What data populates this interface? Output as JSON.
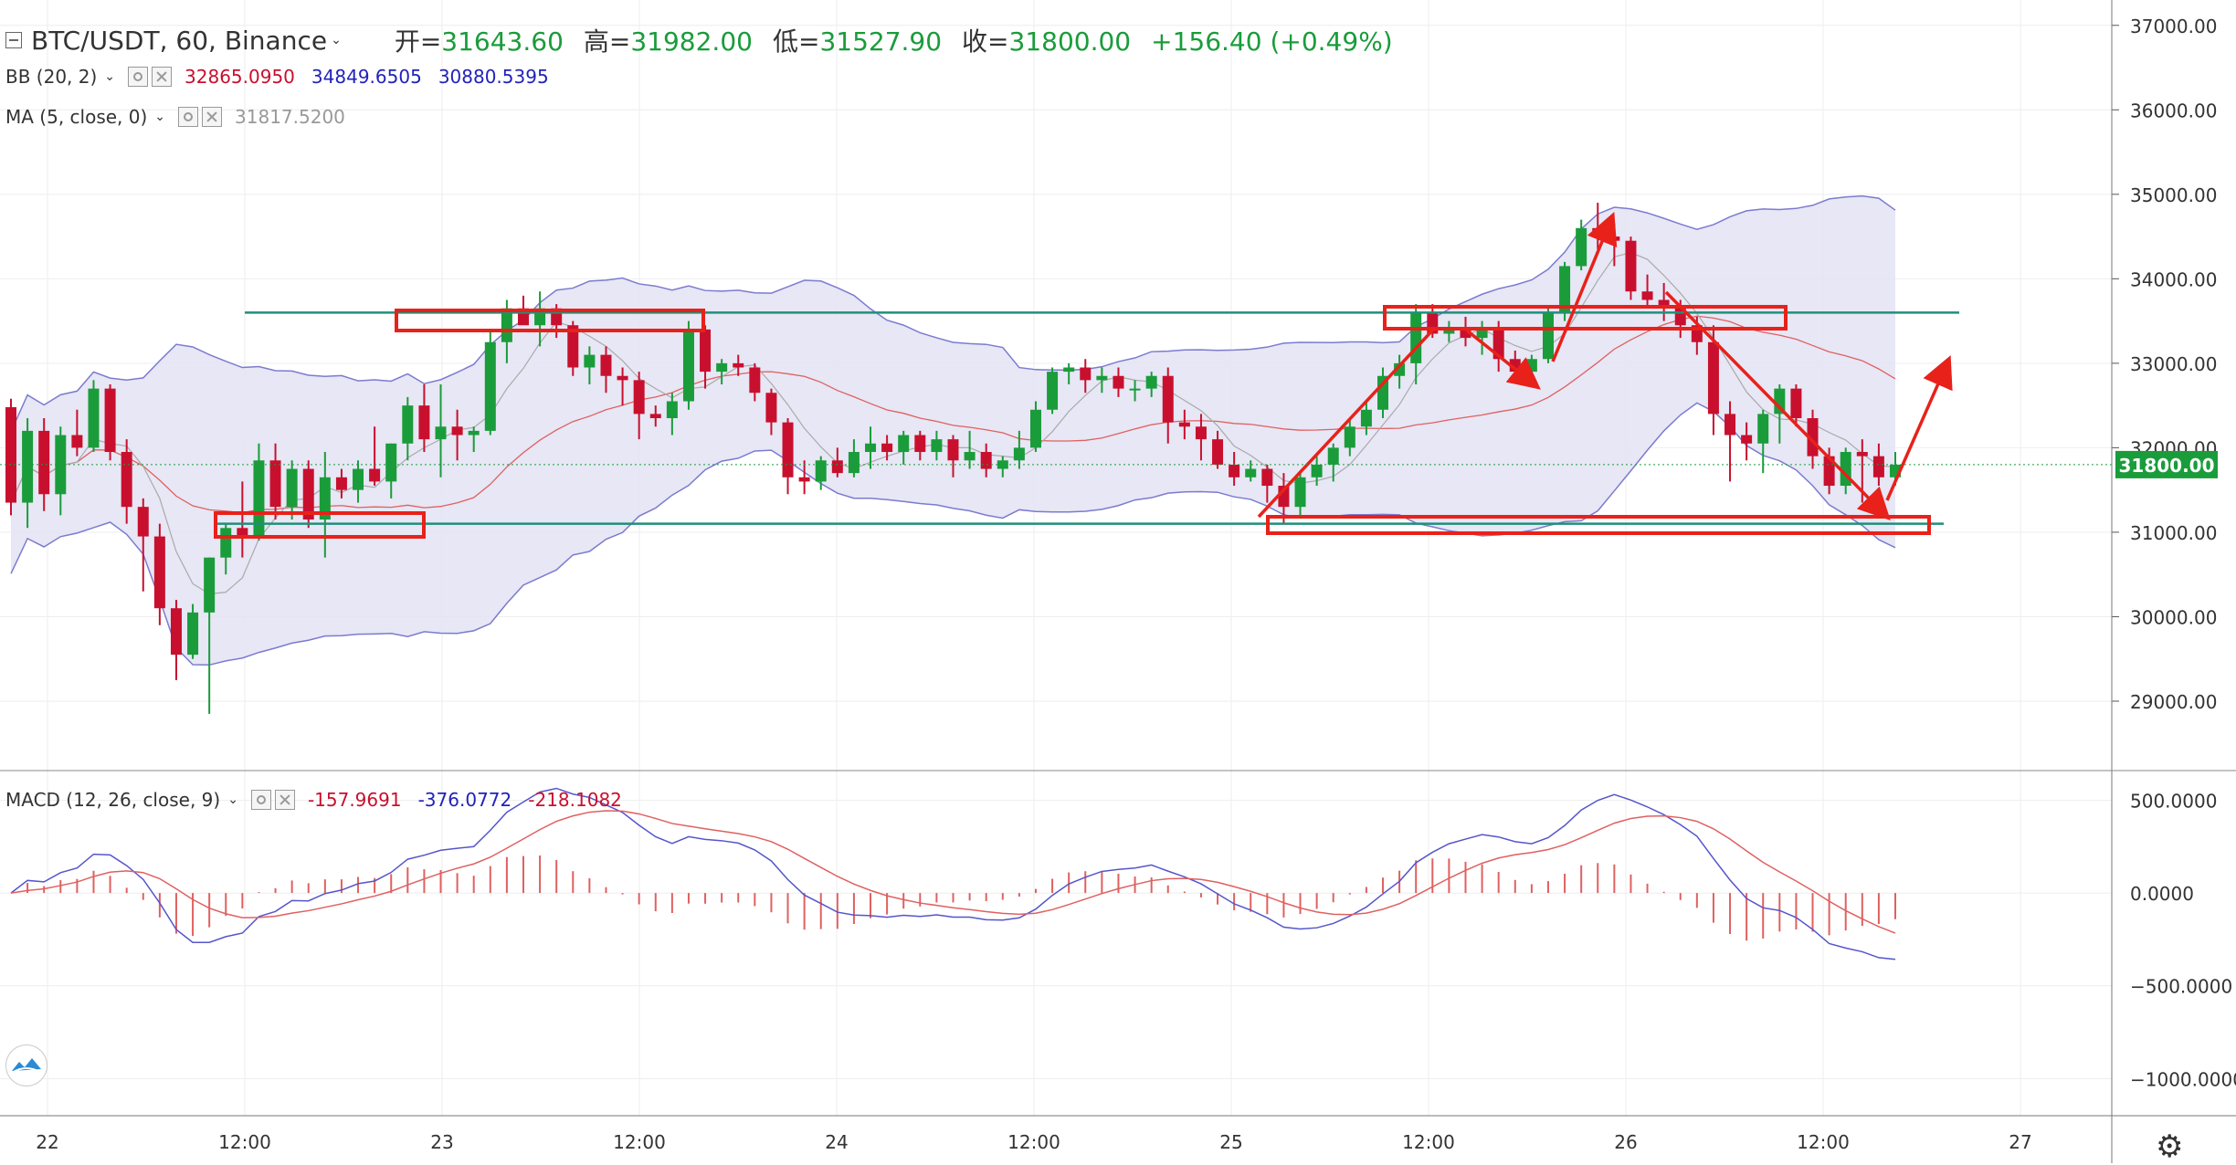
{
  "header": {
    "symbol": "BTC/USDT, 60, Binance",
    "open_label": "开=",
    "open": "31643.60",
    "high_label": "高=",
    "high": "31982.00",
    "low_label": "低=",
    "low": "31527.90",
    "close_label": "收=",
    "close": "31800.00",
    "change": "+156.40 (+0.49%)"
  },
  "indicators": {
    "bb": {
      "label": "BB (20, 2)",
      "basis": "32865.0950",
      "upper": "34849.6505",
      "lower": "30880.5395"
    },
    "ma": {
      "label": "MA (5, close, 0)",
      "value": "31817.5200"
    },
    "macd": {
      "label": "MACD (12, 26, close, 9)",
      "hist": "-157.9691",
      "macd": "-376.0772",
      "signal": "-218.1082"
    }
  },
  "colors": {
    "up": "#1a9c3b",
    "down": "#c8102e",
    "bb_fill": "#e3e3f3",
    "bb_band": "#7b7bd0",
    "bb_basis": "#e06060",
    "annotation": "#e8211a",
    "level_line": "#1f8f7a",
    "price_badge": "#1a9c3b",
    "macd_line": "#5555cc",
    "signal_line": "#e06060",
    "hist": "#e06060"
  },
  "icons": [
    "collapse-icon",
    "eye-icon",
    "close-icon",
    "chevron-down-icon",
    "tradingview-logo-icon",
    "settings-gear-icon"
  ],
  "chart_data": [
    {
      "type": "candlestick",
      "title": "BTC/USDT, 60, Binance",
      "ylim": [
        28200,
        37300
      ],
      "y_ticks": [
        "37000.00",
        "36000.00",
        "35000.00",
        "34000.00",
        "33000.00",
        "32000.00",
        "31000.00",
        "30000.00",
        "29000.00"
      ],
      "x_ticks": [
        "22",
        "12:00",
        "23",
        "12:00",
        "24",
        "12:00",
        "25",
        "12:00",
        "26",
        "12:00",
        "27"
      ],
      "x_tick_hours": [
        0,
        12,
        24,
        36,
        48,
        60,
        72,
        84,
        96,
        108,
        120
      ],
      "last_price": "31800.00",
      "series": [
        {
          "name": "close",
          "o_h_l_c_approx": [
            [
              32480,
              32580,
              31200,
              31350
            ],
            [
              31350,
              32350,
              31050,
              32200
            ],
            [
              32200,
              32350,
              31250,
              31450
            ],
            [
              31450,
              32250,
              31200,
              32150
            ],
            [
              32150,
              32450,
              31900,
              32000
            ],
            [
              32000,
              32800,
              31950,
              32700
            ],
            [
              32700,
              32750,
              31850,
              31950
            ],
            [
              31950,
              32100,
              31100,
              31300
            ],
            [
              31300,
              31400,
              30300,
              30950
            ],
            [
              30950,
              31100,
              29900,
              30100
            ],
            [
              30100,
              30200,
              29250,
              29550
            ],
            [
              29550,
              30150,
              29500,
              30050
            ],
            [
              30050,
              30700,
              28850,
              30700
            ],
            [
              30700,
              31100,
              30500,
              31050
            ],
            [
              31050,
              31600,
              30700,
              30950
            ],
            [
              30950,
              32050,
              30900,
              31850
            ],
            [
              31850,
              32050,
              31150,
              31300
            ],
            [
              31300,
              31850,
              31150,
              31750
            ],
            [
              31750,
              31850,
              31050,
              31150
            ],
            [
              31150,
              31950,
              30700,
              31650
            ],
            [
              31650,
              31750,
              31400,
              31500
            ],
            [
              31500,
              31850,
              31350,
              31750
            ],
            [
              31750,
              32250,
              31550,
              31600
            ],
            [
              31600,
              32050,
              31400,
              32050
            ],
            [
              32050,
              32600,
              31850,
              32500
            ],
            [
              32500,
              32750,
              31950,
              32100
            ],
            [
              32100,
              32750,
              31650,
              32250
            ],
            [
              32250,
              32450,
              31850,
              32150
            ],
            [
              32150,
              32250,
              31950,
              32200
            ],
            [
              32200,
              33400,
              32150,
              33250
            ],
            [
              33250,
              33750,
              33000,
              33650
            ],
            [
              33650,
              33800,
              33500,
              33450
            ],
            [
              33450,
              33850,
              33200,
              33650
            ],
            [
              33650,
              33700,
              33300,
              33450
            ],
            [
              33450,
              33500,
              32850,
              32950
            ],
            [
              32950,
              33200,
              32750,
              33100
            ],
            [
              33100,
              33200,
              32650,
              32850
            ],
            [
              32850,
              32950,
              32500,
              32800
            ],
            [
              32800,
              32900,
              32100,
              32400
            ],
            [
              32400,
              32500,
              32250,
              32350
            ],
            [
              32350,
              32650,
              32150,
              32550
            ],
            [
              32550,
              33500,
              32450,
              33400
            ],
            [
              33400,
              33450,
              32700,
              32900
            ],
            [
              32900,
              33050,
              32750,
              33000
            ],
            [
              33000,
              33100,
              32850,
              32950
            ],
            [
              32950,
              33000,
              32550,
              32650
            ],
            [
              32650,
              32700,
              32150,
              32300
            ],
            [
              32300,
              32350,
              31450,
              31650
            ],
            [
              31650,
              31850,
              31450,
              31600
            ],
            [
              31600,
              31900,
              31500,
              31850
            ],
            [
              31850,
              32000,
              31650,
              31700
            ],
            [
              31700,
              32100,
              31650,
              31950
            ],
            [
              31950,
              32250,
              31750,
              32050
            ],
            [
              32050,
              32150,
              31850,
              31950
            ],
            [
              31950,
              32200,
              31800,
              32150
            ],
            [
              32150,
              32200,
              31850,
              31950
            ],
            [
              31950,
              32200,
              31850,
              32100
            ],
            [
              32100,
              32150,
              31650,
              31850
            ],
            [
              31850,
              32200,
              31750,
              31950
            ],
            [
              31950,
              32050,
              31650,
              31750
            ],
            [
              31750,
              31900,
              31650,
              31850
            ],
            [
              31850,
              32200,
              31750,
              32000
            ],
            [
              32000,
              32550,
              31950,
              32450
            ],
            [
              32450,
              32950,
              32400,
              32900
            ],
            [
              32900,
              33000,
              32750,
              32950
            ],
            [
              32950,
              33050,
              32650,
              32800
            ],
            [
              32800,
              32950,
              32650,
              32850
            ],
            [
              32850,
              32950,
              32600,
              32700
            ],
            [
              32700,
              32800,
              32550,
              32700
            ],
            [
              32700,
              32900,
              32600,
              32850
            ],
            [
              32850,
              32950,
              32050,
              32300
            ],
            [
              32300,
              32450,
              32100,
              32250
            ],
            [
              32250,
              32400,
              31850,
              32100
            ],
            [
              32100,
              32200,
              31750,
              31800
            ],
            [
              31800,
              31950,
              31550,
              31650
            ],
            [
              31650,
              31850,
              31600,
              31750
            ],
            [
              31750,
              31800,
              31350,
              31550
            ],
            [
              31550,
              31700,
              31100,
              31300
            ],
            [
              31300,
              31700,
              31200,
              31650
            ],
            [
              31650,
              31900,
              31550,
              31800
            ],
            [
              31800,
              32050,
              31600,
              32000
            ],
            [
              32000,
              32350,
              31900,
              32250
            ],
            [
              32250,
              32550,
              32150,
              32450
            ],
            [
              32450,
              32950,
              32350,
              32850
            ],
            [
              32850,
              33100,
              32700,
              33000
            ],
            [
              33000,
              33700,
              32750,
              33600
            ],
            [
              33600,
              33700,
              33300,
              33350
            ],
            [
              33350,
              33500,
              33250,
              33400
            ],
            [
              33400,
              33550,
              33200,
              33300
            ],
            [
              33300,
              33500,
              33100,
              33400
            ],
            [
              33400,
              33500,
              32900,
              33050
            ],
            [
              33050,
              33150,
              32800,
              32900
            ],
            [
              32900,
              33100,
              32850,
              33050
            ],
            [
              33050,
              33650,
              33000,
              33600
            ],
            [
              33600,
              34200,
              33500,
              34150
            ],
            [
              34150,
              34700,
              34100,
              34600
            ],
            [
              34600,
              34900,
              34350,
              34500
            ],
            [
              34500,
              34650,
              34150,
              34450
            ],
            [
              34450,
              34500,
              33750,
              33850
            ],
            [
              33850,
              34050,
              33650,
              33750
            ],
            [
              33750,
              33950,
              33500,
              33650
            ],
            [
              33650,
              33750,
              33300,
              33450
            ],
            [
              33450,
              33550,
              33100,
              33250
            ],
            [
              33250,
              33450,
              32150,
              32400
            ],
            [
              32400,
              32550,
              31600,
              32150
            ],
            [
              32150,
              32300,
              31850,
              32050
            ],
            [
              32050,
              32450,
              31700,
              32400
            ],
            [
              32400,
              32750,
              32050,
              32700
            ],
            [
              32700,
              32750,
              32250,
              32350
            ],
            [
              32350,
              32450,
              31750,
              31900
            ],
            [
              31900,
              32000,
              31450,
              31550
            ],
            [
              31550,
              32000,
              31450,
              31950
            ],
            [
              31950,
              32100,
              31350,
              31900
            ],
            [
              31900,
              32050,
              31550,
              31650
            ],
            [
              31650,
              31950,
              31550,
              31800
            ]
          ]
        }
      ],
      "levels": [
        33600,
        31100
      ],
      "annotation_boxes": [
        {
          "x_hours": [
            0,
            0
          ],
          "y": [
            33500,
            33800
          ]
        },
        {
          "x_hours": [
            0,
            0
          ],
          "y": [
            30950,
            31250
          ]
        }
      ]
    },
    {
      "type": "macd",
      "ylim": [
        -1200,
        650
      ],
      "y_ticks": [
        "500.0000",
        "0.0000",
        "−500.0000",
        "−1000.0000"
      ]
    }
  ]
}
